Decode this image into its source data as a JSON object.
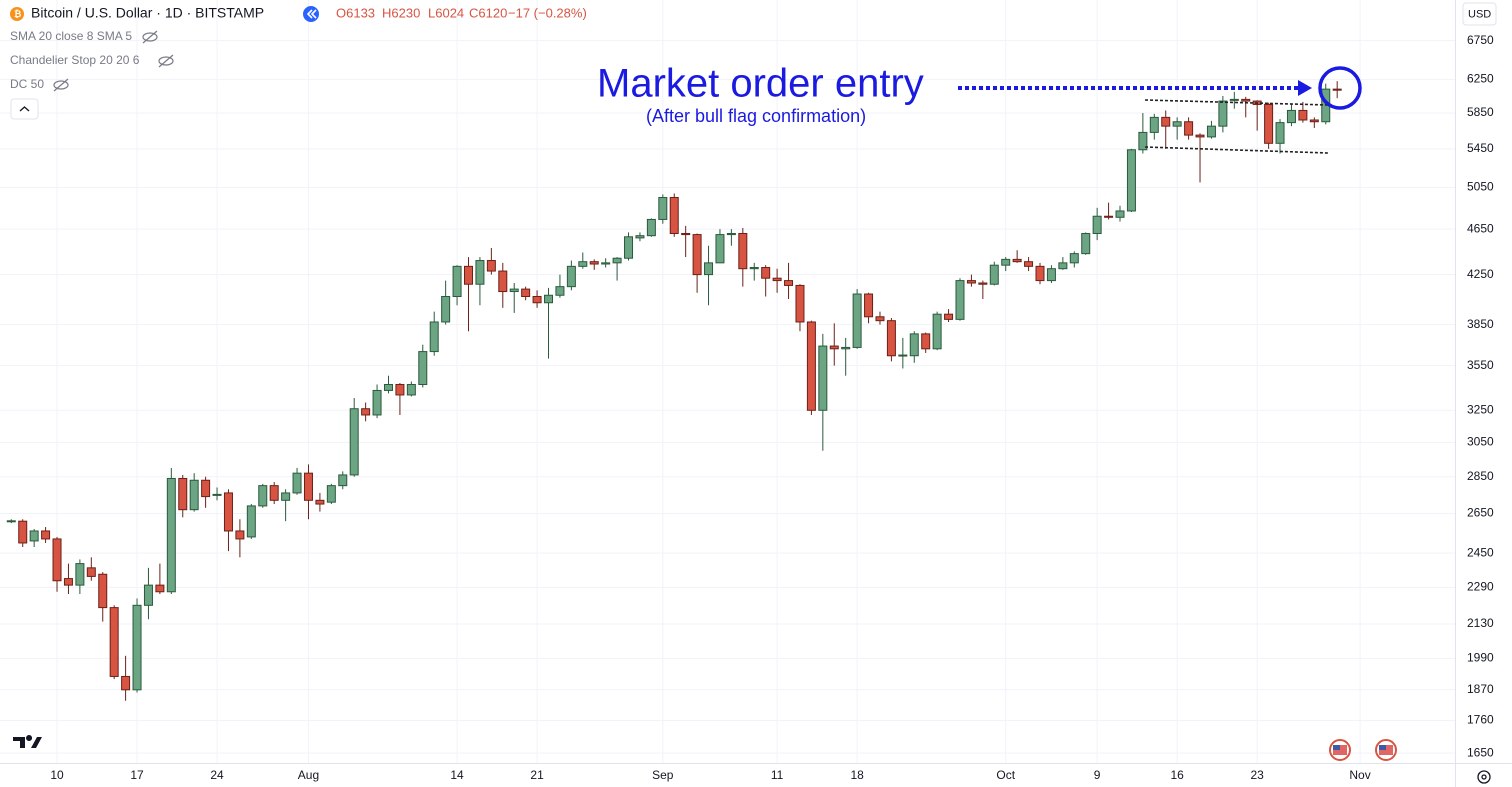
{
  "chart_data": {
    "type": "candlestick",
    "title": "Bitcoin / U.S. Dollar · 1D · BITSTAMP",
    "header_values": [
      "O6133",
      "H6230",
      "L6024",
      "C6120",
      "−17 (−0.28%)"
    ],
    "indicators": [
      "SMA 20 close 8 SMA 5",
      "Chandelier Stop 20 20 6",
      "DC 50"
    ],
    "currency": "USD",
    "annotations": [
      "Market order entry",
      "(After bull flag confirmation)"
    ],
    "annotation_color": "#1a1ae0",
    "up_color": "#6ba583",
    "down_color": "#d75442",
    "log_scale": true,
    "grid": true,
    "ylim": [
      1618,
      7315
    ],
    "yticks": [
      6750,
      6250,
      5850,
      5450,
      5050,
      4650,
      4250,
      3850,
      3550,
      3250,
      3050,
      2850,
      2650,
      2450,
      2290,
      2130,
      1990,
      1870,
      1760,
      1650
    ],
    "categories": [
      null,
      null,
      null,
      null,
      "10",
      null,
      null,
      null,
      null,
      null,
      null,
      "17",
      null,
      null,
      null,
      null,
      null,
      null,
      "24",
      null,
      null,
      null,
      null,
      null,
      null,
      null,
      "Aug",
      null,
      null,
      null,
      null,
      null,
      null,
      null,
      null,
      null,
      null,
      null,
      null,
      "14",
      null,
      null,
      null,
      null,
      null,
      null,
      "21",
      null,
      null,
      null,
      null,
      null,
      null,
      null,
      null,
      null,
      null,
      "Sep",
      null,
      null,
      null,
      null,
      null,
      null,
      null,
      null,
      null,
      "11",
      null,
      null,
      null,
      null,
      null,
      null,
      "18",
      null,
      null,
      null,
      null,
      null,
      null,
      null,
      null,
      null,
      null,
      null,
      null,
      "Oct",
      null,
      null,
      null,
      null,
      null,
      null,
      null,
      "9",
      null,
      null,
      null,
      null,
      null,
      null,
      "16",
      null,
      null,
      null,
      null,
      null,
      null,
      "23",
      null,
      null,
      null,
      null,
      null,
      null,
      null,
      null,
      "Nov"
    ],
    "open": [
      2610,
      2610,
      2510,
      2560,
      2520,
      2330,
      2300,
      2380,
      2350,
      2200,
      1920,
      1870,
      2210,
      2300,
      2270,
      2840,
      2670,
      2830,
      2750,
      2760,
      2560,
      2530,
      2690,
      2800,
      2720,
      2760,
      2870,
      2720,
      2710,
      2800,
      2860,
      3260,
      3220,
      3380,
      3420,
      3350,
      3420,
      3650,
      3870,
      4070,
      4320,
      4170,
      4370,
      4280,
      4110,
      4130,
      4070,
      4020,
      4080,
      4150,
      4320,
      4360,
      4340,
      4350,
      4390,
      4570,
      4590,
      4740,
      4950,
      4610,
      4600,
      4250,
      4350,
      4600,
      4610,
      4300,
      4310,
      4220,
      4200,
      4160,
      3870,
      3250,
      3690,
      3670,
      3680,
      4090,
      3910,
      3880,
      3620,
      3620,
      3780,
      3670,
      3930,
      3890,
      4200,
      4180,
      4170,
      4330,
      4380,
      4360,
      4320,
      4200,
      4300,
      4350,
      4430,
      4610,
      4770,
      4760,
      4820,
      5440,
      5630,
      5800,
      5700,
      5750,
      5600,
      5580,
      5700,
      6000,
      6010,
      5990,
      5950,
      5510,
      5740,
      5880,
      5770,
      5750,
      6133,
      null,
      null
    ],
    "high": [
      2620,
      2620,
      2570,
      2580,
      2530,
      2400,
      2420,
      2430,
      2360,
      2210,
      2000,
      2240,
      2380,
      2400,
      2900,
      2860,
      2870,
      2850,
      2790,
      2780,
      2620,
      2700,
      2810,
      2820,
      2780,
      2900,
      2920,
      2760,
      2810,
      2880,
      3330,
      3300,
      3420,
      3480,
      3430,
      3440,
      3700,
      3950,
      4200,
      4330,
      4400,
      4400,
      4480,
      4350,
      4180,
      4150,
      4120,
      4140,
      4250,
      4370,
      4440,
      4380,
      4390,
      4400,
      4620,
      4620,
      4750,
      4980,
      4990,
      4680,
      4610,
      4500,
      4650,
      4650,
      4660,
      4350,
      4330,
      4300,
      4350,
      4170,
      3880,
      3780,
      3860,
      3750,
      4130,
      4100,
      3950,
      3900,
      3750,
      3800,
      3790,
      3950,
      3970,
      4220,
      4250,
      4200,
      4360,
      4400,
      4460,
      4400,
      4350,
      4330,
      4400,
      4450,
      4620,
      4850,
      4900,
      4870,
      5450,
      5850,
      5840,
      5880,
      5800,
      5800,
      5620,
      5760,
      6050,
      6100,
      6040,
      6000,
      5970,
      5780,
      5950,
      5980,
      5800,
      6200,
      6230,
      null,
      null
    ],
    "low": [
      2600,
      2480,
      2480,
      2500,
      2270,
      2260,
      2260,
      2320,
      2140,
      1910,
      1830,
      1860,
      2150,
      2260,
      2260,
      2630,
      2660,
      2680,
      2720,
      2460,
      2430,
      2520,
      2680,
      2700,
      2610,
      2750,
      2620,
      2660,
      2700,
      2780,
      2850,
      3180,
      3200,
      3360,
      3220,
      3340,
      3400,
      3620,
      3850,
      4000,
      3800,
      4000,
      4250,
      3980,
      3940,
      4040,
      3980,
      3600,
      4060,
      4120,
      4300,
      4290,
      4310,
      4200,
      4370,
      4540,
      4580,
      4700,
      4580,
      4400,
      4100,
      4000,
      4350,
      4500,
      4150,
      4200,
      4070,
      4100,
      4050,
      3800,
      3220,
      3000,
      3550,
      3480,
      3670,
      3860,
      3850,
      3580,
      3530,
      3570,
      3640,
      3660,
      3870,
      3880,
      4150,
      4050,
      4160,
      4280,
      4350,
      4280,
      4170,
      4180,
      4290,
      4310,
      4420,
      4550,
      4740,
      4720,
      4810,
      5400,
      5550,
      5450,
      5550,
      5550,
      5100,
      5560,
      5630,
      5900,
      5800,
      5650,
      5450,
      5400,
      5700,
      5740,
      5680,
      5720,
      6024,
      null,
      null
    ],
    "close": [
      2612,
      2500,
      2560,
      2520,
      2320,
      2300,
      2400,
      2340,
      2200,
      1920,
      1870,
      2210,
      2300,
      2270,
      2840,
      2670,
      2830,
      2740,
      2752,
      2560,
      2520,
      2690,
      2800,
      2720,
      2760,
      2870,
      2720,
      2700,
      2800,
      2860,
      3260,
      3220,
      3380,
      3420,
      3350,
      3420,
      3650,
      3870,
      4070,
      4320,
      4170,
      4370,
      4280,
      4110,
      4130,
      4070,
      4020,
      4080,
      4150,
      4320,
      4360,
      4340,
      4350,
      4390,
      4580,
      4590,
      4740,
      4950,
      4610,
      4600,
      4250,
      4350,
      4600,
      4610,
      4300,
      4310,
      4220,
      4200,
      4160,
      3870,
      3250,
      3690,
      3670,
      3680,
      4090,
      3910,
      3880,
      3620,
      3625,
      3780,
      3670,
      3930,
      3890,
      4200,
      4180,
      4170,
      4330,
      4380,
      4360,
      4320,
      4200,
      4300,
      4350,
      4430,
      4610,
      4770,
      4760,
      4820,
      5440,
      5630,
      5800,
      5700,
      5750,
      5600,
      5580,
      5700,
      5990,
      6010,
      5990,
      5950,
      5510,
      5740,
      5880,
      5770,
      5750,
      6133,
      6120,
      null,
      null
    ]
  }
}
